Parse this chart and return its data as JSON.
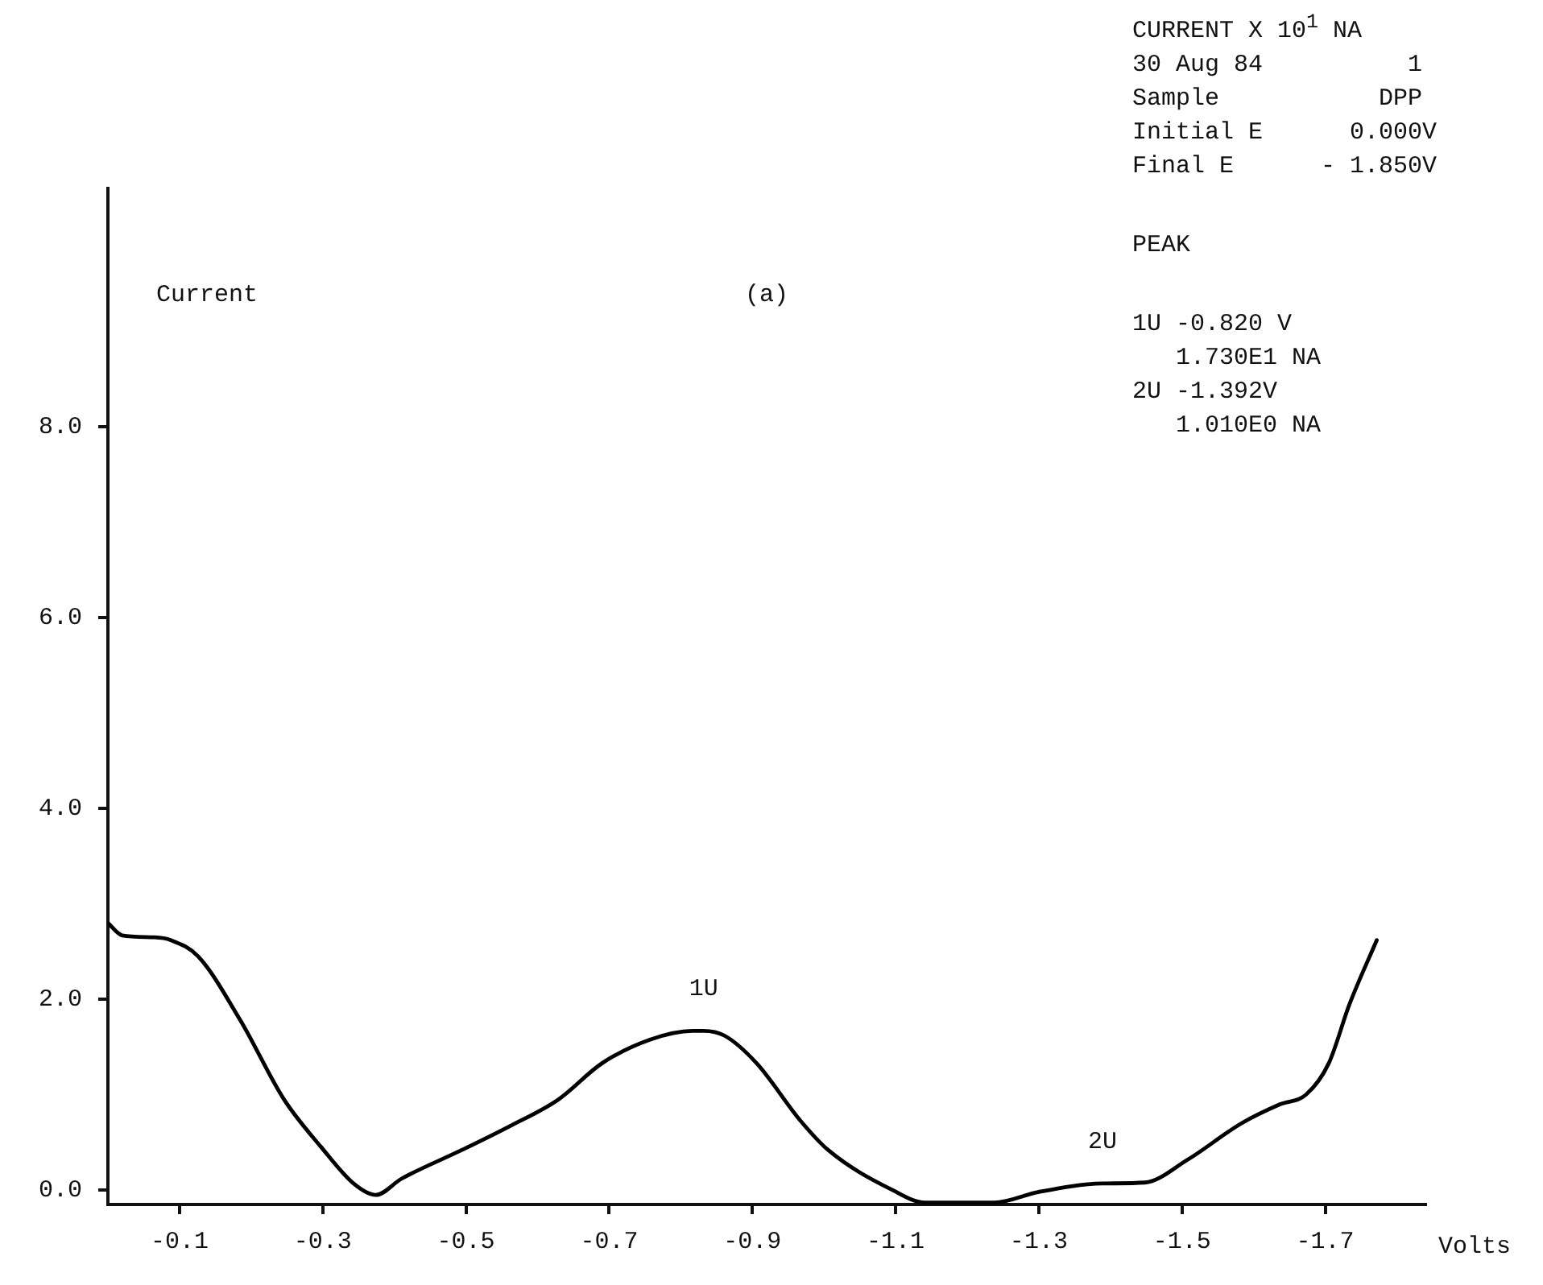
{
  "chart_data": {
    "type": "line",
    "title": "(a)",
    "xlabel": "Volts",
    "ylabel": "Current",
    "x": [
      0,
      -0.02,
      -0.065,
      -0.088,
      -0.126,
      -0.185,
      -0.246,
      -0.298,
      -0.343,
      -0.374,
      -0.41,
      -0.494,
      -0.561,
      -0.629,
      -0.69,
      -0.758,
      -0.816,
      -0.832,
      -0.861,
      -0.906,
      -0.967,
      -1.006,
      -1.096,
      -1.141,
      -1.238,
      -1.299,
      -1.389,
      -1.448,
      -1.508,
      -1.583,
      -1.637,
      -1.673,
      -1.705,
      -1.734,
      -1.772
    ],
    "series": [
      {
        "color": "#000000",
        "values": [
          2.8,
          2.67,
          2.65,
          2.62,
          2.45,
          1.78,
          0.95,
          0.45,
          0.07,
          -0.05,
          0.12,
          0.42,
          0.67,
          0.95,
          1.33,
          1.58,
          1.67,
          1.67,
          1.62,
          1.33,
          0.73,
          0.42,
          0.0,
          -0.13,
          -0.13,
          -0.02,
          0.07,
          0.08,
          0.32,
          0.7,
          0.9,
          1.0,
          1.33,
          1.95,
          2.62
        ]
      }
    ],
    "xlim": [
      0,
      -1.84
    ],
    "ylim": [
      -0.15,
      10.5
    ],
    "xticks": [
      -0.1,
      -0.3,
      -0.5,
      -0.7,
      -0.9,
      -1.1,
      -1.3,
      -1.5,
      -1.7
    ],
    "yticks": [
      {
        "value": 0,
        "label": "0.0"
      },
      {
        "value": 2,
        "label": "2.0"
      },
      {
        "value": 4,
        "label": "4.0"
      },
      {
        "value": 6,
        "label": "6.0"
      },
      {
        "value": 8,
        "label": "8.0"
      }
    ],
    "grid": false,
    "legend": false,
    "marker": "none",
    "line_style": "solid",
    "annotations": [
      {
        "text": "1U",
        "x": -0.832,
        "y": 1.67
      },
      {
        "text": "2U",
        "x": -1.389,
        "y": 0.07
      },
      "CURRENT X 10$^{1}$ NA\n30 Aug 84          1\nSample           DPP\nInitial E      0.000V\nFinal E      - 1.850V",
      "PEAK",
      "1U -0.820 V\n   1.730E1 NA\n2U -1.392V\n   1.010E0 NA"
    ]
  }
}
